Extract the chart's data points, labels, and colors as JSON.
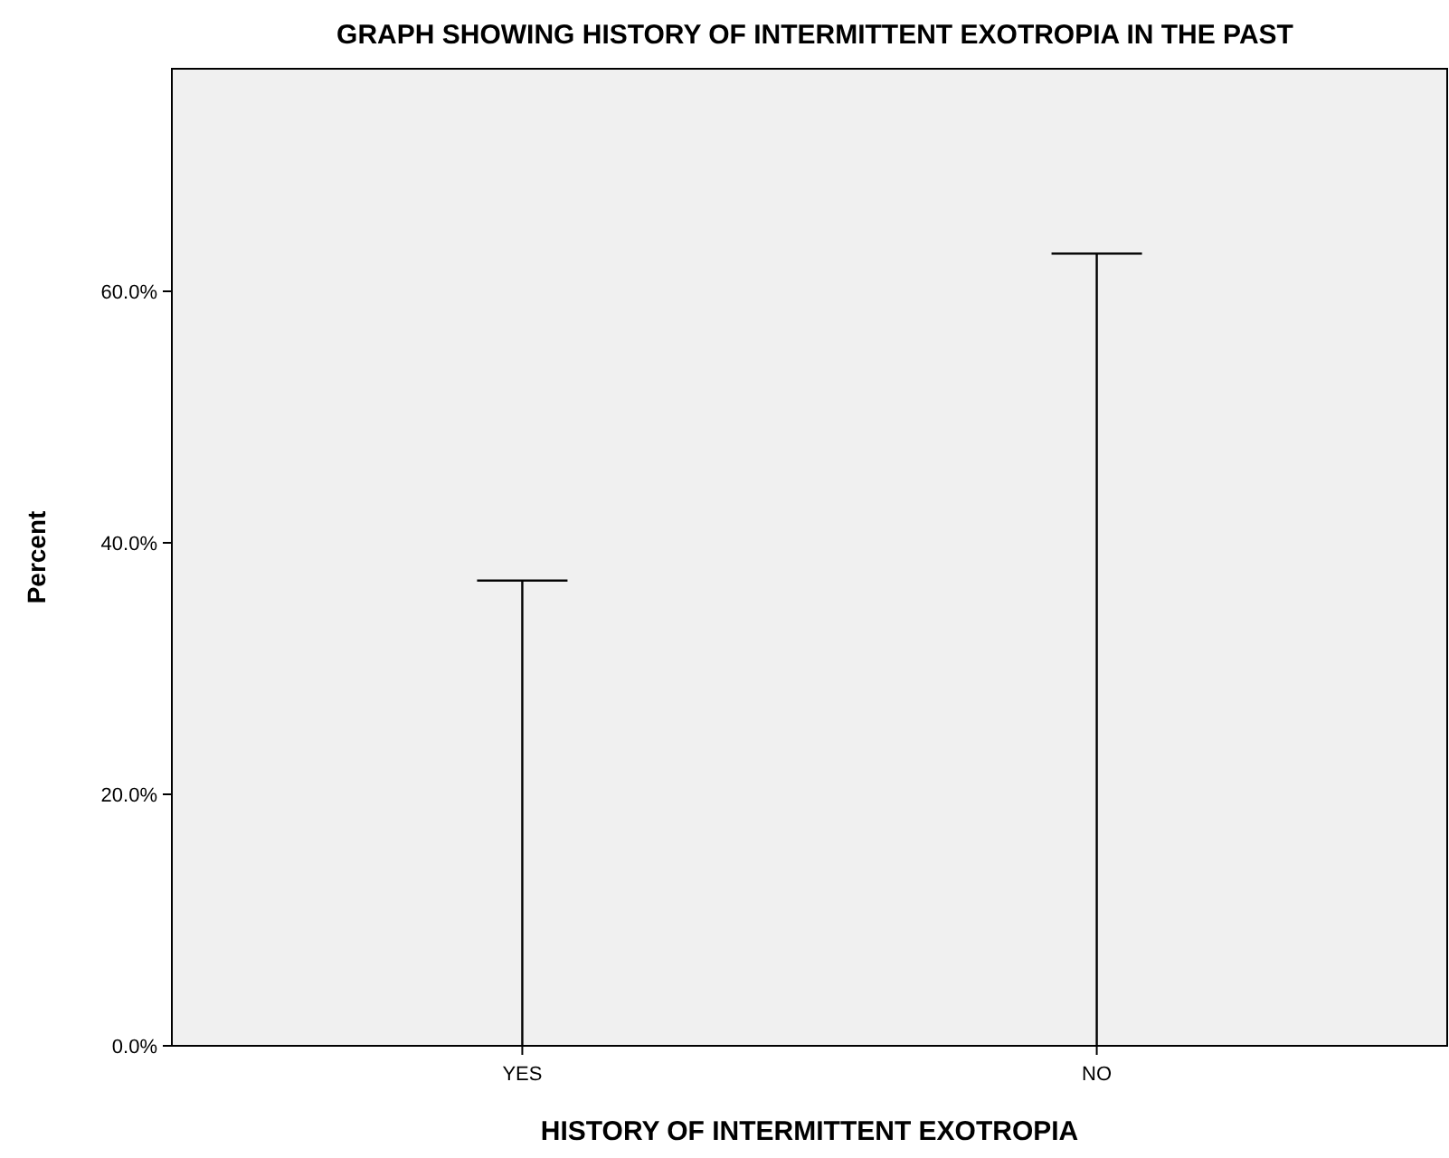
{
  "chart_data": {
    "type": "bar",
    "title": "GRAPH SHOWING HISTORY OF INTERMITTENT EXOTROPIA IN THE PAST",
    "xlabel": "HISTORY OF INTERMITTENT EXOTROPIA",
    "ylabel": "Percent",
    "categories": [
      "YES",
      "NO"
    ],
    "values": [
      37.0,
      63.0
    ],
    "color": "#000000",
    "ylim": [
      0,
      77.7
    ],
    "yticks": [
      {
        "value": 0,
        "label": "0.0%"
      },
      {
        "value": 20,
        "label": "20.0%"
      },
      {
        "value": 40,
        "label": "40.0%"
      },
      {
        "value": 60,
        "label": "60.0%"
      }
    ],
    "grid": false
  }
}
